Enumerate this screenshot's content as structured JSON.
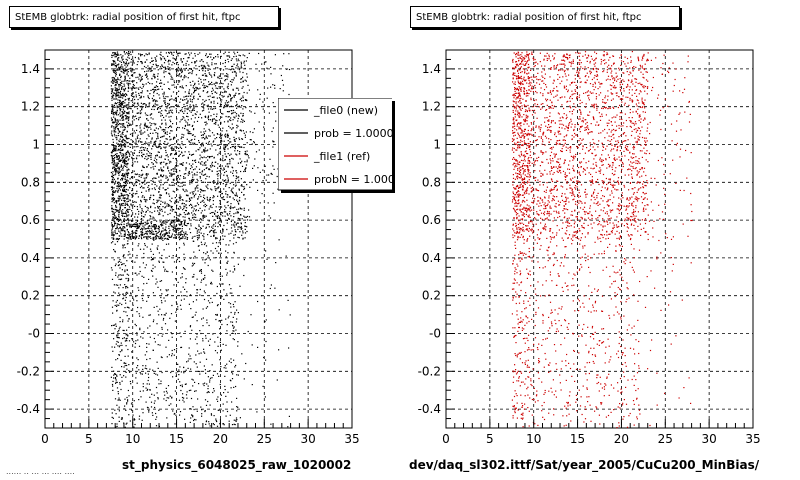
{
  "colors": {
    "black_series": "#000000",
    "red_series": "#cc0000",
    "grid": "#000000"
  },
  "panels": [
    {
      "title": "StEMB globtrk: radial position of first hit, ftpc",
      "xtitle": "st_physics_6048025_raw_1020002"
    },
    {
      "title": "StEMB globtrk: radial position of first hit, ftpc",
      "xtitle": "dev/daq_sl302.ittf/Sat/year_2005/CuCu200_MinBias/"
    }
  ],
  "legend": {
    "entries": [
      {
        "label": "_file0 (new)",
        "color": "#000000"
      },
      {
        "label": "prob = 1.000000",
        "color": "#000000"
      },
      {
        "label": "_file1 (ref)",
        "color": "#cc0000"
      },
      {
        "label": "probN = 1.000000",
        "color": "#cc0000"
      }
    ]
  },
  "footer_text": "...... .. ... ... .... ....",
  "chart_data": [
    {
      "type": "scatter",
      "title": "StEMB globtrk: radial position of first hit, ftpc",
      "xlabel": "st_physics_6048025_raw_1020002",
      "ylabel": "",
      "xlim": [
        0,
        35
      ],
      "ylim": [
        -0.5,
        1.5
      ],
      "xticks": [
        0,
        5,
        10,
        15,
        20,
        25,
        30,
        35
      ],
      "xtick_labels": [
        "0",
        "5",
        "10",
        "15",
        "20",
        "25",
        "30",
        "35"
      ],
      "yticks": [
        -0.4,
        -0.2,
        0,
        0.2,
        0.4,
        0.6,
        0.8,
        1.0,
        1.2,
        1.4
      ],
      "ytick_labels": [
        "-0.4",
        "-0.2",
        "-0",
        "0.2",
        "0.4",
        "0.6",
        "0.8",
        "1",
        "1.2",
        "1.4"
      ],
      "grid": true,
      "legend_position": "top-right",
      "series": [
        {
          "name": "_file0 (new)",
          "color": "#000000",
          "regions": [
            {
              "xr": [
                7.5,
                9.5
              ],
              "yr": [
                0.5,
                1.5
              ],
              "n": 1100
            },
            {
              "xr": [
                9.5,
                23
              ],
              "yr": [
                0.5,
                1.5
              ],
              "n": 2600
            },
            {
              "xr": [
                9.5,
                16
              ],
              "yr": [
                0.5,
                0.6
              ],
              "n": 250
            },
            {
              "xr": [
                23,
                28
              ],
              "yr": [
                0.6,
                1.5
              ],
              "n": 120
            },
            {
              "xr": [
                7.5,
                9.5
              ],
              "yr": [
                -0.5,
                0.5
              ],
              "n": 250
            },
            {
              "xr": [
                9.5,
                22
              ],
              "yr": [
                -0.5,
                0.5
              ],
              "n": 750
            },
            {
              "xr": [
                22,
                28
              ],
              "yr": [
                -0.5,
                0.5
              ],
              "n": 40
            }
          ]
        }
      ]
    },
    {
      "type": "scatter",
      "title": "StEMB globtrk: radial position of first hit, ftpc",
      "xlabel": "dev/daq_sl302.ittf/Sat/year_2005/CuCu200_MinBias/",
      "ylabel": "",
      "xlim": [
        0,
        35
      ],
      "ylim": [
        -0.5,
        1.5
      ],
      "xticks": [
        0,
        5,
        10,
        15,
        20,
        25,
        30,
        35
      ],
      "xtick_labels": [
        "0",
        "5",
        "10",
        "15",
        "20",
        "25",
        "30",
        "35"
      ],
      "yticks": [
        -0.4,
        -0.2,
        0,
        0.2,
        0.4,
        0.6,
        0.8,
        1.0,
        1.2,
        1.4
      ],
      "ytick_labels": [
        "-0.4",
        "-0.2",
        "-0",
        "0.2",
        "0.4",
        "0.6",
        "0.8",
        "1",
        "1.2",
        "1.4"
      ],
      "grid": true,
      "series": [
        {
          "name": "_file1 (ref)",
          "color": "#cc0000",
          "regions": [
            {
              "xr": [
                7.5,
                9.5
              ],
              "yr": [
                0.5,
                1.5
              ],
              "n": 700
            },
            {
              "xr": [
                9.5,
                23
              ],
              "yr": [
                0.5,
                1.5
              ],
              "n": 1900
            },
            {
              "xr": [
                23,
                28
              ],
              "yr": [
                0.5,
                1.5
              ],
              "n": 90
            },
            {
              "xr": [
                7.5,
                9.5
              ],
              "yr": [
                -0.5,
                0.5
              ],
              "n": 200
            },
            {
              "xr": [
                9.5,
                22
              ],
              "yr": [
                -0.5,
                0.5
              ],
              "n": 500
            },
            {
              "xr": [
                22,
                28
              ],
              "yr": [
                -0.5,
                0.5
              ],
              "n": 30
            }
          ]
        }
      ]
    }
  ]
}
